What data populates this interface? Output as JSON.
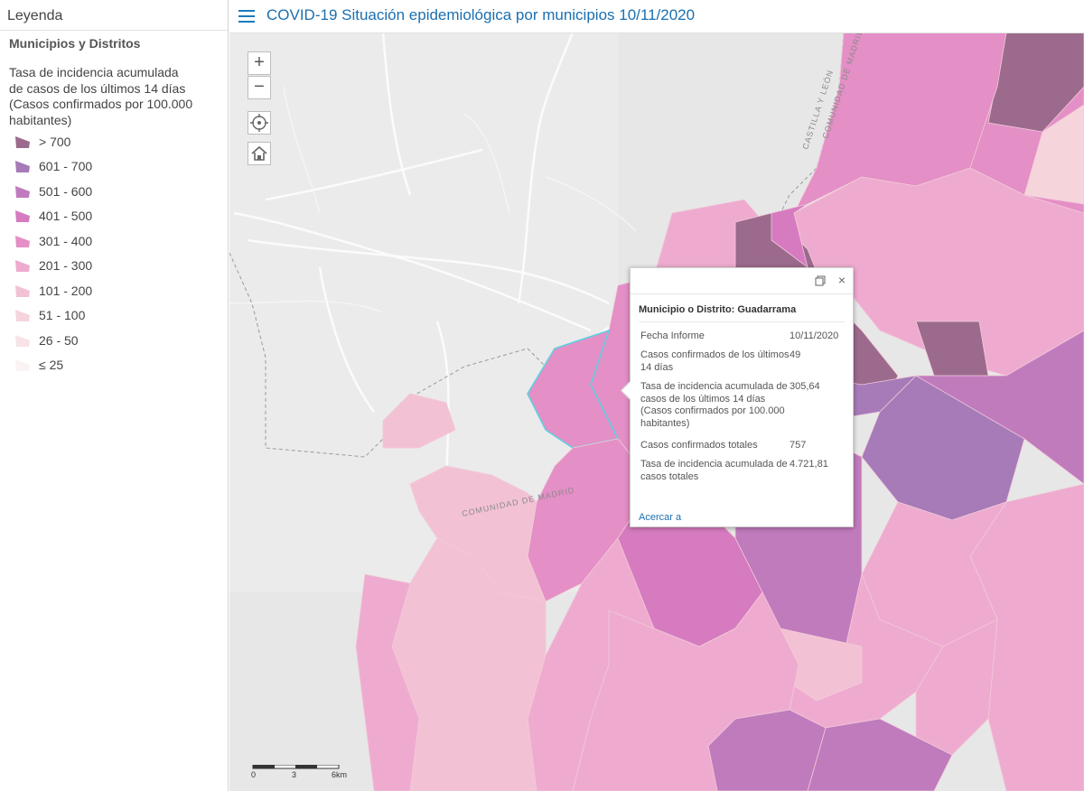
{
  "sidebar": {
    "title": "Leyenda",
    "layer_title": "Municipios y Distritos",
    "field_title": "Tasa de incidencia acumulada de casos de los últimos 14 días (Casos confirmados por 100.000 habitantes)",
    "legend": [
      {
        "label": "> 700",
        "color": "#9b6a8c"
      },
      {
        "label": "601 - 700",
        "color": "#a67bb8"
      },
      {
        "label": "501 - 600",
        "color": "#c07bbd"
      },
      {
        "label": "401 - 500",
        "color": "#d67bc0"
      },
      {
        "label": "301 - 400",
        "color": "#e48fc6"
      },
      {
        "label": "201 - 300",
        "color": "#eeabcf"
      },
      {
        "label": "101 - 200",
        "color": "#f2c2d4"
      },
      {
        "label": "51 - 100",
        "color": "#f6d4dc"
      },
      {
        "label": "26 - 50",
        "color": "#f8e3e7"
      },
      {
        "label": "≤ 25",
        "color": "#fbf2f3"
      }
    ]
  },
  "header": {
    "title": "COVID-19 Situación epidemiológica por municipios 10/11/2020"
  },
  "map": {
    "zoom_in": "+",
    "zoom_out": "−",
    "labels": {
      "region_1": "CASTILLA Y LEÓN",
      "region_2": "COMUNIDAD DE MADRID",
      "region_3": "COMUNIDAD DE MADRID"
    },
    "scale": {
      "t0": "0",
      "t1": "3",
      "t2": "6km"
    }
  },
  "popup": {
    "title": "Municipio o Distrito: Guadarrama",
    "rows": [
      {
        "k": "Fecha Informe",
        "v": "10/11/2020"
      },
      {
        "k": "Casos confirmados de los últimos 14 días",
        "v": "49"
      },
      {
        "k": "Tasa de incidencia acumulada de casos de los últimos 14 días (Casos confirmados por 100.000 habitantes)",
        "v": "305,64"
      },
      {
        "k": "Casos confirmados totales",
        "v": "757"
      },
      {
        "k": "Tasa de incidencia acumulada de casos totales",
        "v": "4.721,81"
      }
    ],
    "zoom_link": "Acercar a",
    "close": "×"
  }
}
